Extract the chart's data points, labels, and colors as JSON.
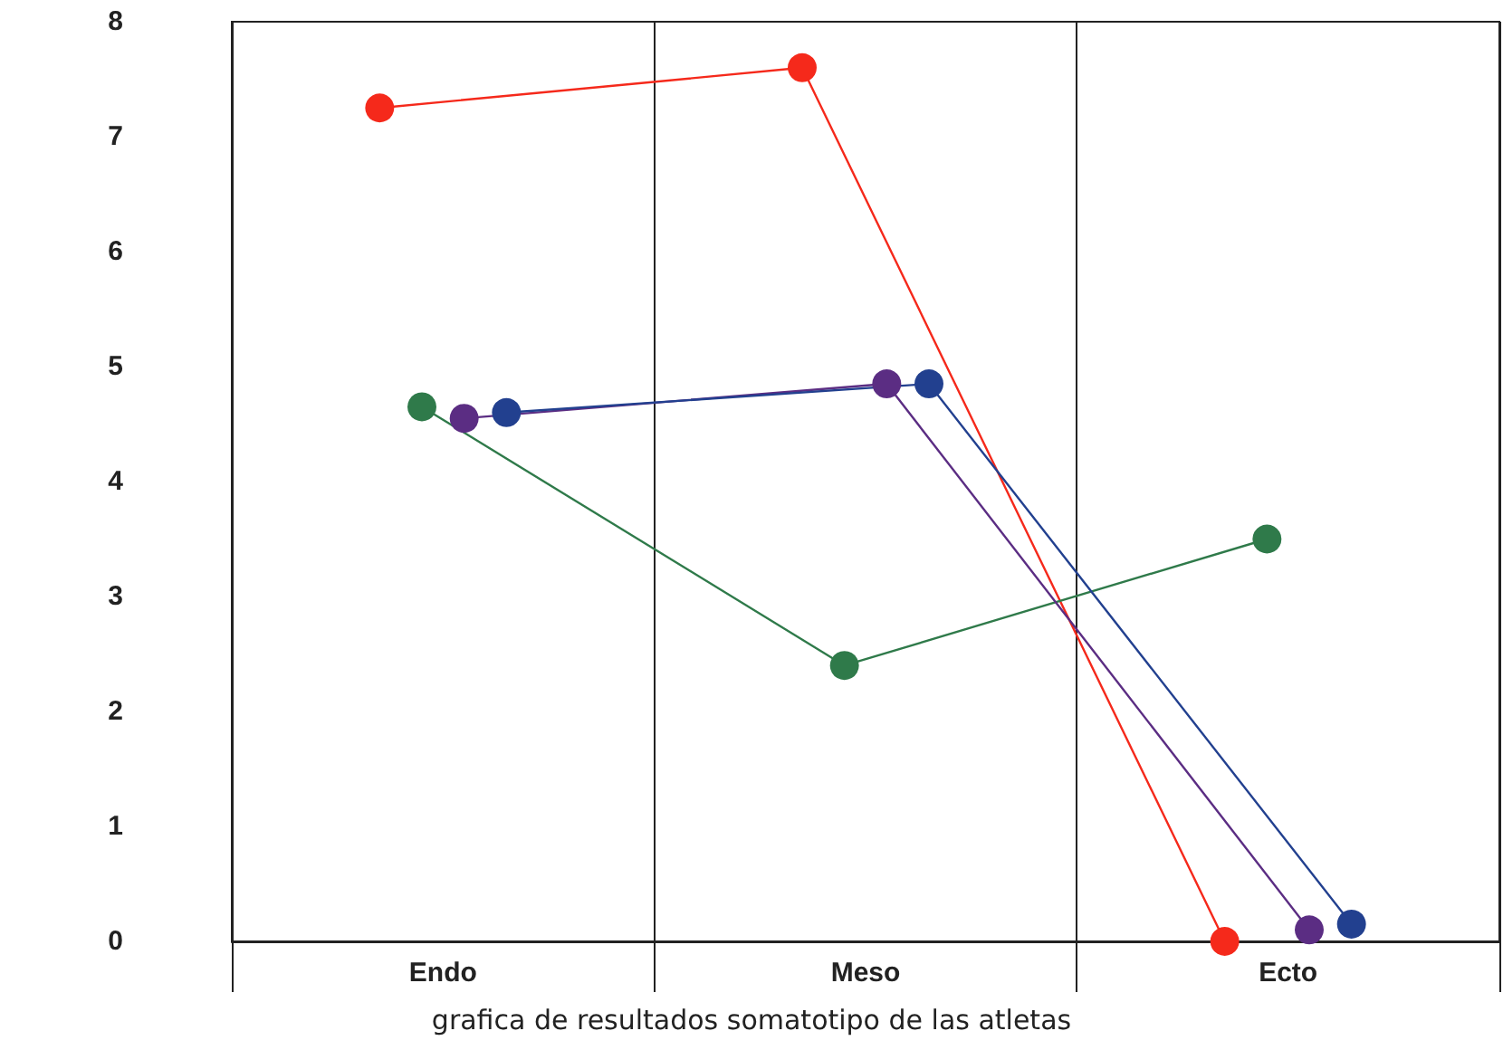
{
  "chart_data": {
    "type": "line",
    "title": "grafica de resultados somatotipo de las atletas",
    "categories": [
      "Endo",
      "Meso",
      "Ecto"
    ],
    "series": [
      {
        "color": "#f5291b",
        "values": [
          7.25,
          7.6,
          0
        ]
      },
      {
        "color": "#2f7a4a",
        "values": [
          4.65,
          2.4,
          3.5
        ]
      },
      {
        "color": "#5b2d83",
        "values": [
          4.55,
          4.85,
          0.1
        ]
      },
      {
        "color": "#22408f",
        "values": [
          4.6,
          4.85,
          0.15
        ]
      }
    ],
    "ylim": [
      0,
      8
    ],
    "yticks": [
      0,
      1,
      2,
      3,
      4,
      5,
      6,
      7,
      8
    ],
    "grid": "x",
    "marker": "circle",
    "line_style": "solid"
  }
}
